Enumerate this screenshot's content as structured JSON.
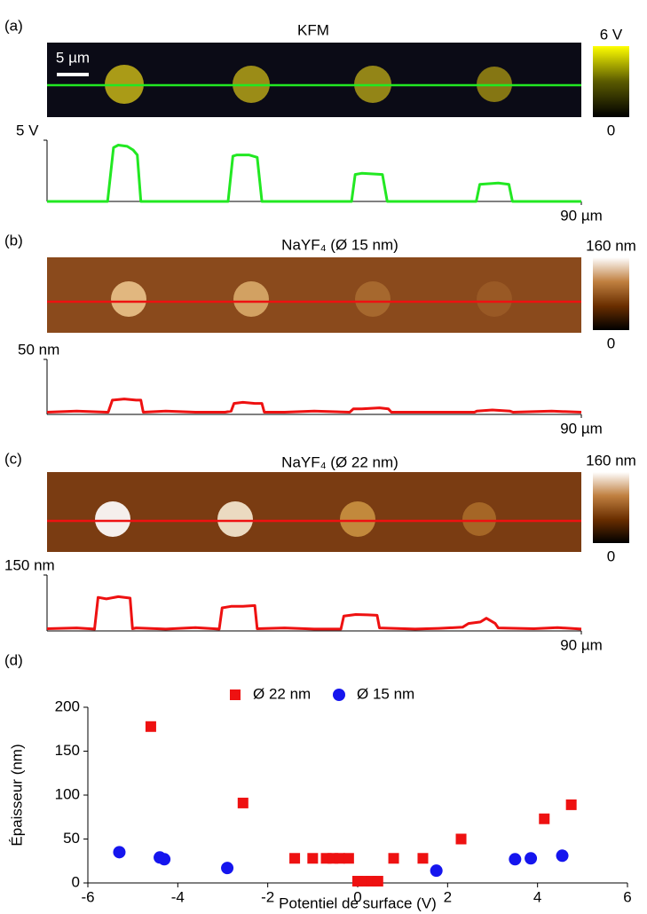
{
  "chart_data": [
    {
      "type": "line",
      "panel_label": "(a)",
      "title": "KFM",
      "scale_bar": "5 µm",
      "colorbar": {
        "clim": [
          0,
          6
        ],
        "cticks": [
          {
            "value": 6,
            "label": "6 V"
          },
          0
        ],
        "colors": [
          "#000000",
          "#5a5a00",
          "#ffff00"
        ]
      },
      "x": [
        0,
        10.2,
        11.2,
        12,
        13.5,
        14.5,
        15.2,
        15.8,
        30.5,
        31.3,
        32,
        34,
        35.4,
        36.2,
        51.3,
        51.9,
        53,
        56.5,
        57.3,
        72.3,
        72.9,
        76,
        77.8,
        78.4,
        90
      ],
      "series": [
        {
          "color": "#22e822",
          "values": [
            0,
            0,
            4.4,
            4.6,
            4.5,
            4.2,
            3.8,
            0,
            0,
            3.7,
            3.8,
            3.8,
            3.6,
            0,
            0,
            2.2,
            2.3,
            2.2,
            0,
            0,
            1.4,
            1.5,
            1.4,
            0,
            0
          ]
        }
      ],
      "xlim": [
        0,
        90
      ],
      "ylim": [
        0,
        5
      ],
      "xticks": [
        {
          "value": 90,
          "label": "90 µm"
        }
      ],
      "yticks": [
        {
          "value": 5,
          "label": "5 V"
        }
      ]
    },
    {
      "type": "line",
      "panel_label": "(b)",
      "title": "NaYF₄ (Ø 15 nm)",
      "colorbar": {
        "clim": [
          0,
          160
        ],
        "cticks": [
          {
            "value": 160,
            "label": "160 nm"
          },
          0
        ],
        "colors": [
          "#000000",
          "#6a2e00",
          "#c08040",
          "#ffffff"
        ]
      },
      "x": [
        0,
        5,
        10,
        10.3,
        11,
        13,
        15,
        15.8,
        16.2,
        20,
        25,
        30,
        31,
        31.5,
        33,
        35,
        36.2,
        36.6,
        40,
        45,
        51,
        51.6,
        53,
        56,
        57.5,
        58,
        65,
        72,
        72.4,
        75,
        78,
        78.5,
        85,
        90
      ],
      "series": [
        {
          "color": "#ee1111",
          "values": [
            2,
            3,
            2,
            2,
            13,
            14,
            13,
            13,
            2,
            3,
            2,
            2,
            3,
            10,
            11,
            10,
            10,
            2,
            2,
            3,
            2,
            5,
            5,
            6,
            5,
            2,
            2,
            2,
            3,
            4,
            3,
            2,
            3,
            2
          ]
        }
      ],
      "xlim": [
        0,
        90
      ],
      "ylim": [
        0,
        50
      ],
      "xticks": [
        {
          "value": 90,
          "label": "90 µm"
        }
      ],
      "yticks": [
        {
          "value": 50,
          "label": "50 nm"
        }
      ]
    },
    {
      "type": "line",
      "panel_label": "(c)",
      "title": "NaYF₄ (Ø 22 nm)",
      "colorbar": {
        "clim": [
          0,
          160
        ],
        "cticks": [
          {
            "value": 160,
            "label": "160 nm"
          },
          0
        ],
        "colors": [
          "#000000",
          "#6a2e00",
          "#c08040",
          "#ffffff"
        ]
      },
      "x": [
        0,
        5,
        8,
        8.6,
        10,
        12,
        14,
        14.4,
        15,
        20,
        25,
        29,
        29.5,
        31,
        33,
        35,
        35.4,
        40,
        45,
        49.5,
        50,
        52,
        54,
        55.6,
        56,
        62,
        66,
        70,
        71,
        73,
        74,
        75.5,
        76,
        82,
        86,
        90
      ],
      "series": [
        {
          "color": "#ee1111",
          "values": [
            6,
            8,
            5,
            90,
            86,
            92,
            88,
            6,
            8,
            5,
            9,
            5,
            62,
            66,
            66,
            68,
            6,
            8,
            5,
            5,
            40,
            44,
            43,
            42,
            8,
            5,
            7,
            10,
            20,
            24,
            34,
            20,
            8,
            6,
            9,
            5
          ]
        }
      ],
      "xlim": [
        0,
        90
      ],
      "ylim": [
        0,
        150
      ],
      "xticks": [
        {
          "value": 90,
          "label": "90 µm"
        }
      ],
      "yticks": [
        {
          "value": 150,
          "label": "150 nm"
        }
      ]
    },
    {
      "type": "scatter",
      "panel_label": "(d)",
      "x_label": "Potentiel de surface (V)",
      "y_label": "Épaisseur (nm)",
      "xlim": [
        -6,
        6
      ],
      "ylim": [
        0,
        200
      ],
      "xticks": [
        -6,
        -4,
        -2,
        0,
        2,
        4,
        6
      ],
      "yticks": [
        0,
        50,
        100,
        150,
        200
      ],
      "series": [
        {
          "name": "Ø 22 nm",
          "color": "#ee1111",
          "marker": "square",
          "x": [
            -4.6,
            -2.55,
            -1.4,
            -1.0,
            -0.7,
            -0.55,
            -0.4,
            -0.2,
            0.0,
            0.15,
            0.3,
            0.45,
            0.8,
            1.45,
            2.3,
            4.15,
            4.75
          ],
          "values": [
            178,
            91,
            28,
            28,
            28,
            28,
            28,
            28,
            2,
            2,
            2,
            2,
            28,
            28,
            50,
            73,
            89
          ]
        },
        {
          "name": "Ø 15 nm",
          "color": "#1515ee",
          "marker": "circle",
          "x": [
            -5.3,
            -4.4,
            -4.3,
            -2.9,
            1.75,
            3.5,
            3.85,
            4.55
          ],
          "values": [
            35,
            29,
            27,
            17,
            14,
            27,
            28,
            31
          ]
        }
      ]
    }
  ]
}
